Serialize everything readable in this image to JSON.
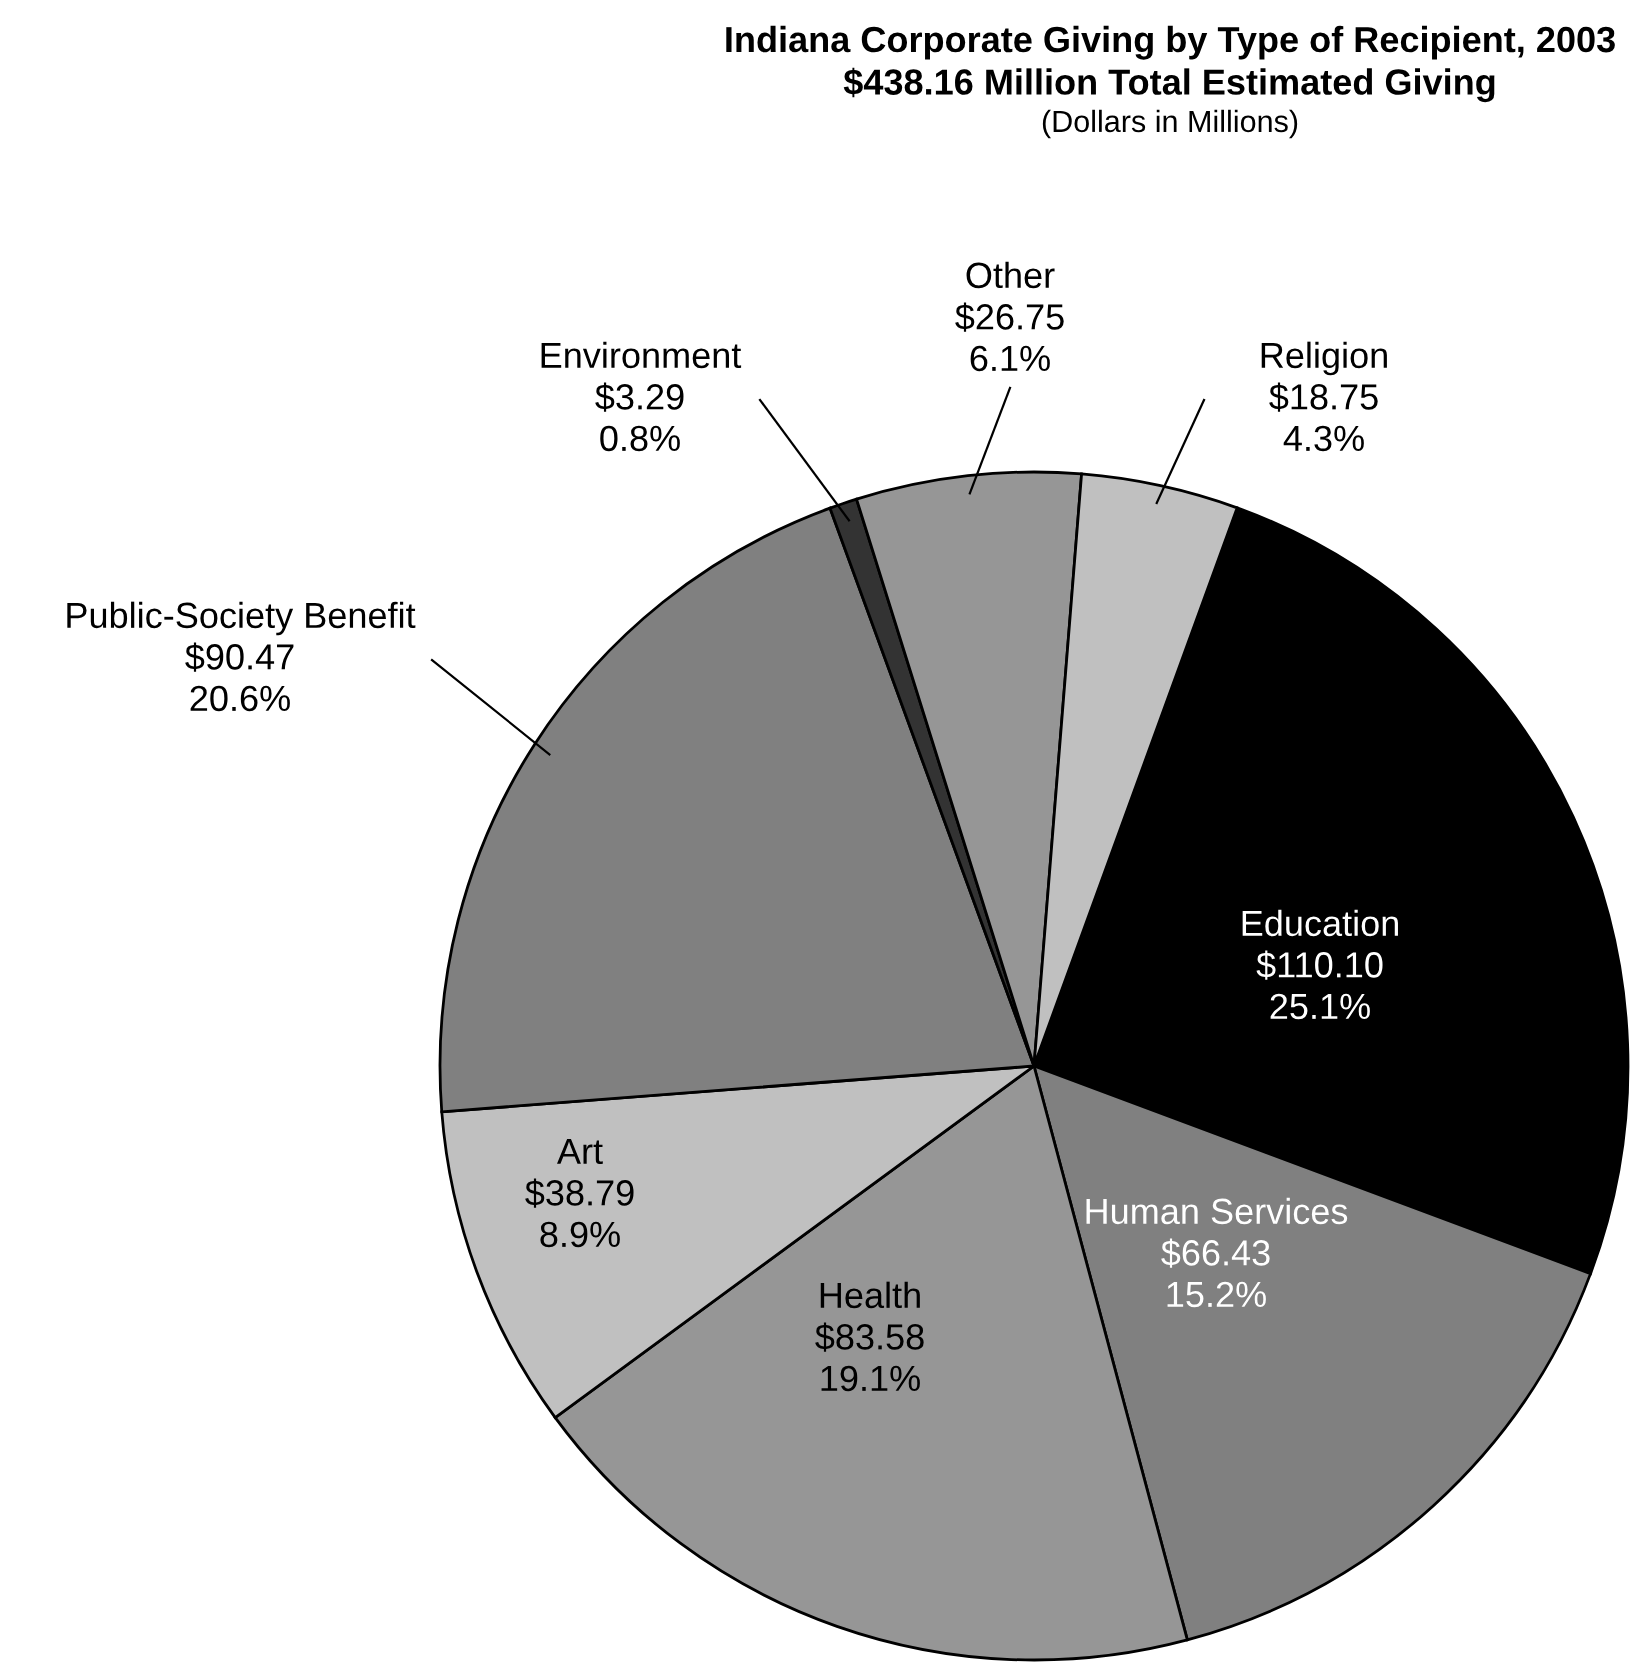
{
  "chart_data": {
    "type": "pie",
    "title": "Indiana Corporate Giving by Type of Recipient, 2003\n$438.16 Million Total Estimated Giving",
    "subtitle": "(Dollars in Millions)",
    "categories": [
      "Education",
      "Human Services",
      "Health",
      "Art",
      "Public-Society Benefit",
      "Environment",
      "Other",
      "Religion"
    ],
    "values": [
      110.1,
      66.43,
      83.58,
      38.79,
      90.47,
      3.29,
      26.75,
      18.75
    ],
    "value_labels": [
      "$110.10\n25.1%",
      "$66.43\n15.2%",
      "$83.58\n19.1%",
      "$38.79\n8.9%",
      "$90.47\n20.6%",
      "$3.29\n0.8%",
      "$26.75\n6.1%",
      "$18.75\n4.3%"
    ],
    "colors": [
      "#000000",
      "#808080",
      "#969696",
      "#c0c0c0",
      "#808080",
      "#333333",
      "#969696",
      "#c0c0c0"
    ]
  }
}
